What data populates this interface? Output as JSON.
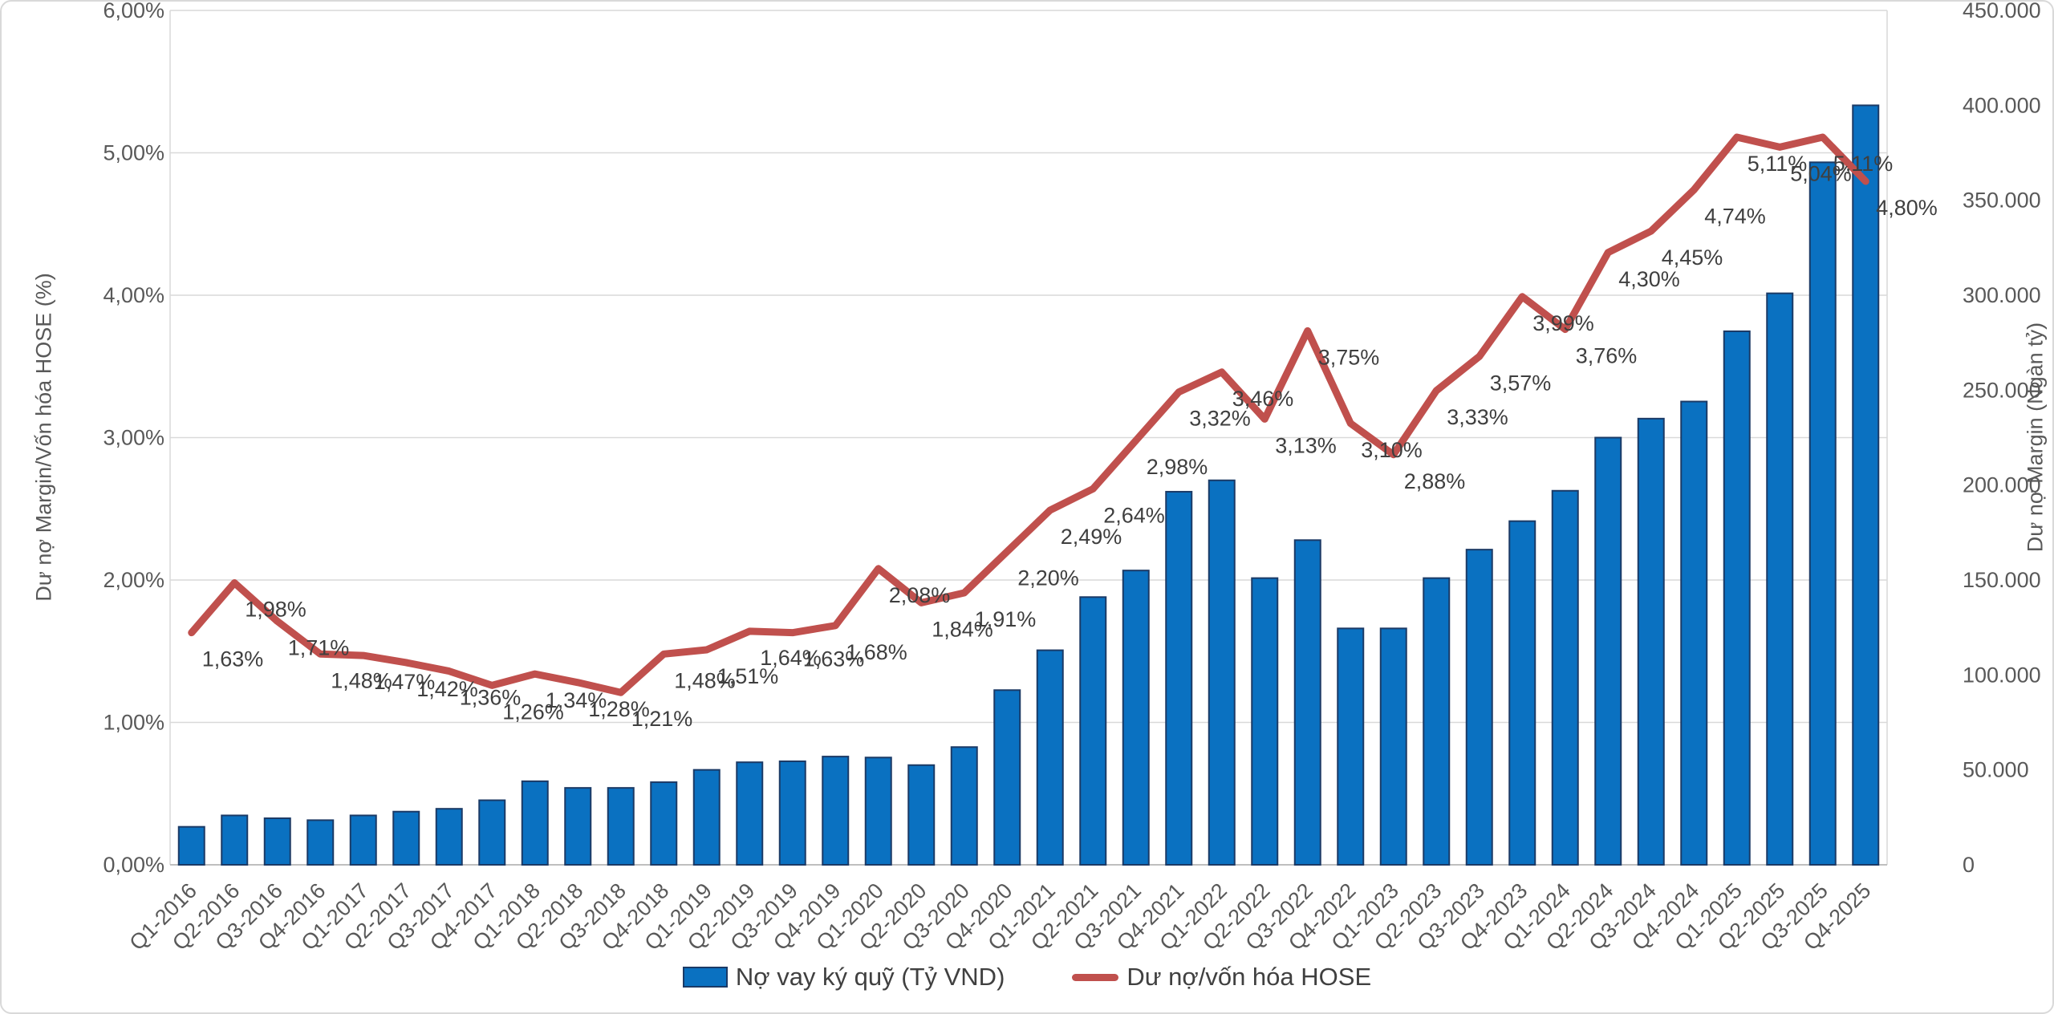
{
  "colors": {
    "bar_fill": "#0a71c1",
    "bar_border": "#1b3a66",
    "line": "#c0504d",
    "grid": "#d9d9d9",
    "axis_line": "#bfbfbf",
    "tick_text": "#595959",
    "data_label_text": "#3f3f3f"
  },
  "chart_data": {
    "type": "bar",
    "subtype": "combo-bar-line-dual-axis",
    "categories": [
      "Q1-2016",
      "Q2-2016",
      "Q3-2016",
      "Q4-2016",
      "Q1-2017",
      "Q2-2017",
      "Q3-2017",
      "Q4-2017",
      "Q1-2018",
      "Q2-2018",
      "Q3-2018",
      "Q4-2018",
      "Q1-2019",
      "Q2-2019",
      "Q3-2019",
      "Q4-2019",
      "Q1-2020",
      "Q2-2020",
      "Q3-2020",
      "Q4-2020",
      "Q1-2021",
      "Q2-2021",
      "Q3-2021",
      "Q4-2021",
      "Q1-2022",
      "Q2-2022",
      "Q3-2022",
      "Q4-2022",
      "Q1-2023",
      "Q2-2023",
      "Q3-2023",
      "Q4-2023",
      "Q1-2024",
      "Q2-2024",
      "Q3-2024",
      "Q4-2024",
      "Q1-2025",
      "Q2-2025",
      "Q3-2025",
      "Q4-2025"
    ],
    "series": [
      {
        "name": "Nợ vay ký quỹ (Tỷ VND)",
        "type": "bar",
        "axis": "right",
        "values": [
          20000,
          26000,
          24500,
          23500,
          26000,
          28000,
          29500,
          34000,
          44000,
          40500,
          40500,
          43500,
          50000,
          54000,
          54500,
          57000,
          56500,
          52500,
          62000,
          92000,
          113000,
          141000,
          155000,
          196500,
          202500,
          151000,
          171000,
          124500,
          124500,
          151000,
          166000,
          181000,
          197000,
          225000,
          235000,
          244000,
          281000,
          301000,
          370000,
          400000
        ]
      },
      {
        "name": "Dư nợ/vốn hóa HOSE",
        "type": "line",
        "axis": "left",
        "values": [
          1.63,
          1.98,
          1.71,
          1.48,
          1.47,
          1.42,
          1.36,
          1.26,
          1.34,
          1.28,
          1.21,
          1.48,
          1.51,
          1.64,
          1.63,
          1.68,
          2.08,
          1.84,
          1.91,
          2.2,
          2.49,
          2.64,
          2.98,
          3.32,
          3.46,
          3.13,
          3.75,
          3.1,
          2.88,
          3.33,
          3.57,
          3.99,
          3.76,
          4.3,
          4.45,
          4.74,
          5.11,
          5.04,
          5.11,
          4.8
        ],
        "labels": [
          "1,63%",
          "1,98%",
          "1,71%",
          "1,48%",
          "1,47%",
          "1,42%",
          "1,36%",
          "1,26%",
          "1,34%",
          "1,28%",
          "1,21%",
          "1,48%",
          "1,51%",
          "1,64%",
          "1,63%",
          "1,68%",
          "2,08%",
          "1,84%",
          "1,91%",
          "2,20%",
          "2,49%",
          "2,64%",
          "2,98%",
          "3,32%",
          "3,46%",
          "3,13%",
          "3,75%",
          "3,10%",
          "2,88%",
          "3,33%",
          "3,57%",
          "3,99%",
          "3,76%",
          "4,30%",
          "4,45%",
          "4,74%",
          "5,11%",
          "5,04%",
          "5,11%",
          "4,80%"
        ]
      }
    ],
    "left_axis": {
      "title": "Dư nợ Margin/Vốn hóa HOSE (%)",
      "min": 0,
      "max": 6,
      "step": 1,
      "tick_labels": [
        "0,00%",
        "1,00%",
        "2,00%",
        "3,00%",
        "4,00%",
        "5,00%",
        "6,00%"
      ]
    },
    "right_axis": {
      "title": "Dư nợ Margin (Ngàn tỷ)",
      "min": 0,
      "max": 450000,
      "step": 50000,
      "tick_labels": [
        "0",
        "50.000",
        "100.000",
        "150.000",
        "200.000",
        "250.000",
        "300.000",
        "350.000",
        "400.000",
        "450.000"
      ]
    },
    "grid": true,
    "legend_position": "bottom"
  }
}
